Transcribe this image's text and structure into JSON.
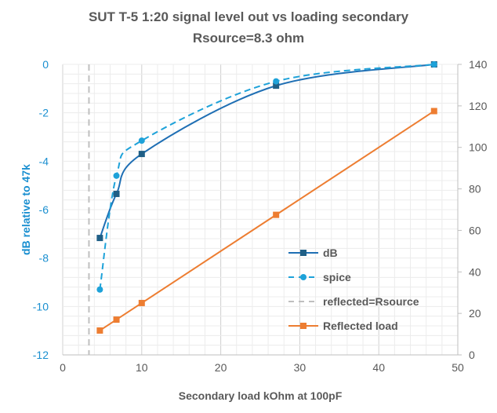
{
  "chart_data": {
    "type": "line",
    "title": "SUT T-5 1:20 signal level out vs loading secondary",
    "subtitle": "Rsource=8.3 ohm",
    "xlabel": "Secondary load kOhm at 100pF",
    "ylabel": "dB relative to 47k",
    "y2label": "",
    "xlim": [
      0,
      50
    ],
    "ylim": [
      -12,
      0
    ],
    "y2lim": [
      0,
      140
    ],
    "xticks": [
      "0",
      "10",
      "20",
      "30",
      "40",
      "50"
    ],
    "yticks": [
      "0",
      "-2",
      "-4",
      "-6",
      "-8",
      "-10",
      "-12"
    ],
    "y2ticks": [
      "140",
      "120",
      "100",
      "80",
      "60",
      "40",
      "20",
      "0"
    ],
    "grid": true,
    "legend_position": "center-right",
    "series": [
      {
        "name": "dB",
        "axis": "left",
        "style": "solid-square",
        "color": "#1f6fb4",
        "marker_color": "#1f5f86",
        "x": [
          4.7,
          6.8,
          10,
          27,
          47
        ],
        "values": [
          -7.17,
          -5.35,
          -3.7,
          -0.88,
          0
        ]
      },
      {
        "name": "spice",
        "axis": "left",
        "style": "dashed-circle",
        "color": "#1ea2d9",
        "marker_color": "#1ea2d9",
        "x": [
          4.7,
          6.8,
          10,
          27,
          47
        ],
        "values": [
          -9.3,
          -4.6,
          -3.15,
          -0.7,
          0
        ]
      },
      {
        "name": "reflected=Rsource",
        "axis": "left",
        "style": "vline-dashed",
        "color": "#bfbfbf",
        "x": [
          3.32,
          3.32
        ],
        "values": [
          0,
          -12
        ]
      },
      {
        "name": "Reflected load",
        "axis": "right",
        "style": "solid-square",
        "color": "#ed7d31",
        "marker_color": "#ed7d31",
        "x": [
          4.7,
          6.8,
          10,
          27,
          47
        ],
        "values": [
          11.75,
          17,
          25,
          67.5,
          117.5
        ]
      }
    ]
  }
}
